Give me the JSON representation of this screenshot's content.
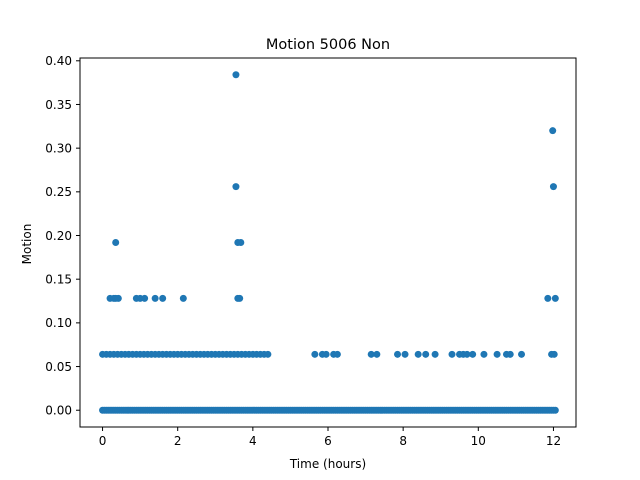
{
  "chart_data": {
    "type": "scatter",
    "title": "Motion 5006 Non",
    "xlabel": "Time (hours)",
    "ylabel": "Motion",
    "xlim": [
      -0.6,
      12.6
    ],
    "ylim": [
      -0.0192,
      0.4032
    ],
    "xticks": [
      0,
      2,
      4,
      6,
      8,
      10,
      12
    ],
    "yticks": [
      0.0,
      0.05,
      0.1,
      0.15,
      0.2,
      0.25,
      0.3,
      0.35,
      0.4
    ],
    "ytick_labels": [
      "0.00",
      "0.05",
      "0.10",
      "0.15",
      "0.20",
      "0.25",
      "0.30",
      "0.35",
      "0.40"
    ],
    "grid": false,
    "marker_color": "#1f77b4",
    "series": [
      {
        "baseline_level": 0.0,
        "baseline_x_range": [
          0,
          12.05
        ],
        "points": [
          [
            3.55,
            0.384
          ],
          [
            3.55,
            0.256
          ],
          [
            3.6,
            0.192
          ],
          [
            3.68,
            0.192
          ],
          [
            3.6,
            0.128
          ],
          [
            3.65,
            0.128
          ],
          [
            0.35,
            0.192
          ],
          [
            0.2,
            0.128
          ],
          [
            0.3,
            0.128
          ],
          [
            0.35,
            0.128
          ],
          [
            0.42,
            0.128
          ],
          [
            0.9,
            0.128
          ],
          [
            1.0,
            0.128
          ],
          [
            1.12,
            0.128
          ],
          [
            1.4,
            0.128
          ],
          [
            1.6,
            0.128
          ],
          [
            2.15,
            0.128
          ],
          [
            11.98,
            0.32
          ],
          [
            12.0,
            0.256
          ],
          [
            11.85,
            0.128
          ],
          [
            12.05,
            0.128
          ],
          [
            5.65,
            0.064
          ],
          [
            5.85,
            0.064
          ],
          [
            5.95,
            0.064
          ],
          [
            6.15,
            0.064
          ],
          [
            6.25,
            0.064
          ],
          [
            7.15,
            0.064
          ],
          [
            7.3,
            0.064
          ],
          [
            7.85,
            0.064
          ],
          [
            8.05,
            0.064
          ],
          [
            8.4,
            0.064
          ],
          [
            8.6,
            0.064
          ],
          [
            8.85,
            0.064
          ],
          [
            9.3,
            0.064
          ],
          [
            9.5,
            0.064
          ],
          [
            9.6,
            0.064
          ],
          [
            9.7,
            0.064
          ],
          [
            9.85,
            0.064
          ],
          [
            10.15,
            0.064
          ],
          [
            10.5,
            0.064
          ],
          [
            10.75,
            0.064
          ],
          [
            10.85,
            0.064
          ],
          [
            11.15,
            0.064
          ],
          [
            11.95,
            0.064
          ],
          [
            12.02,
            0.064
          ]
        ],
        "dense_range_at_0064": [
          0,
          4.45
        ]
      }
    ]
  }
}
